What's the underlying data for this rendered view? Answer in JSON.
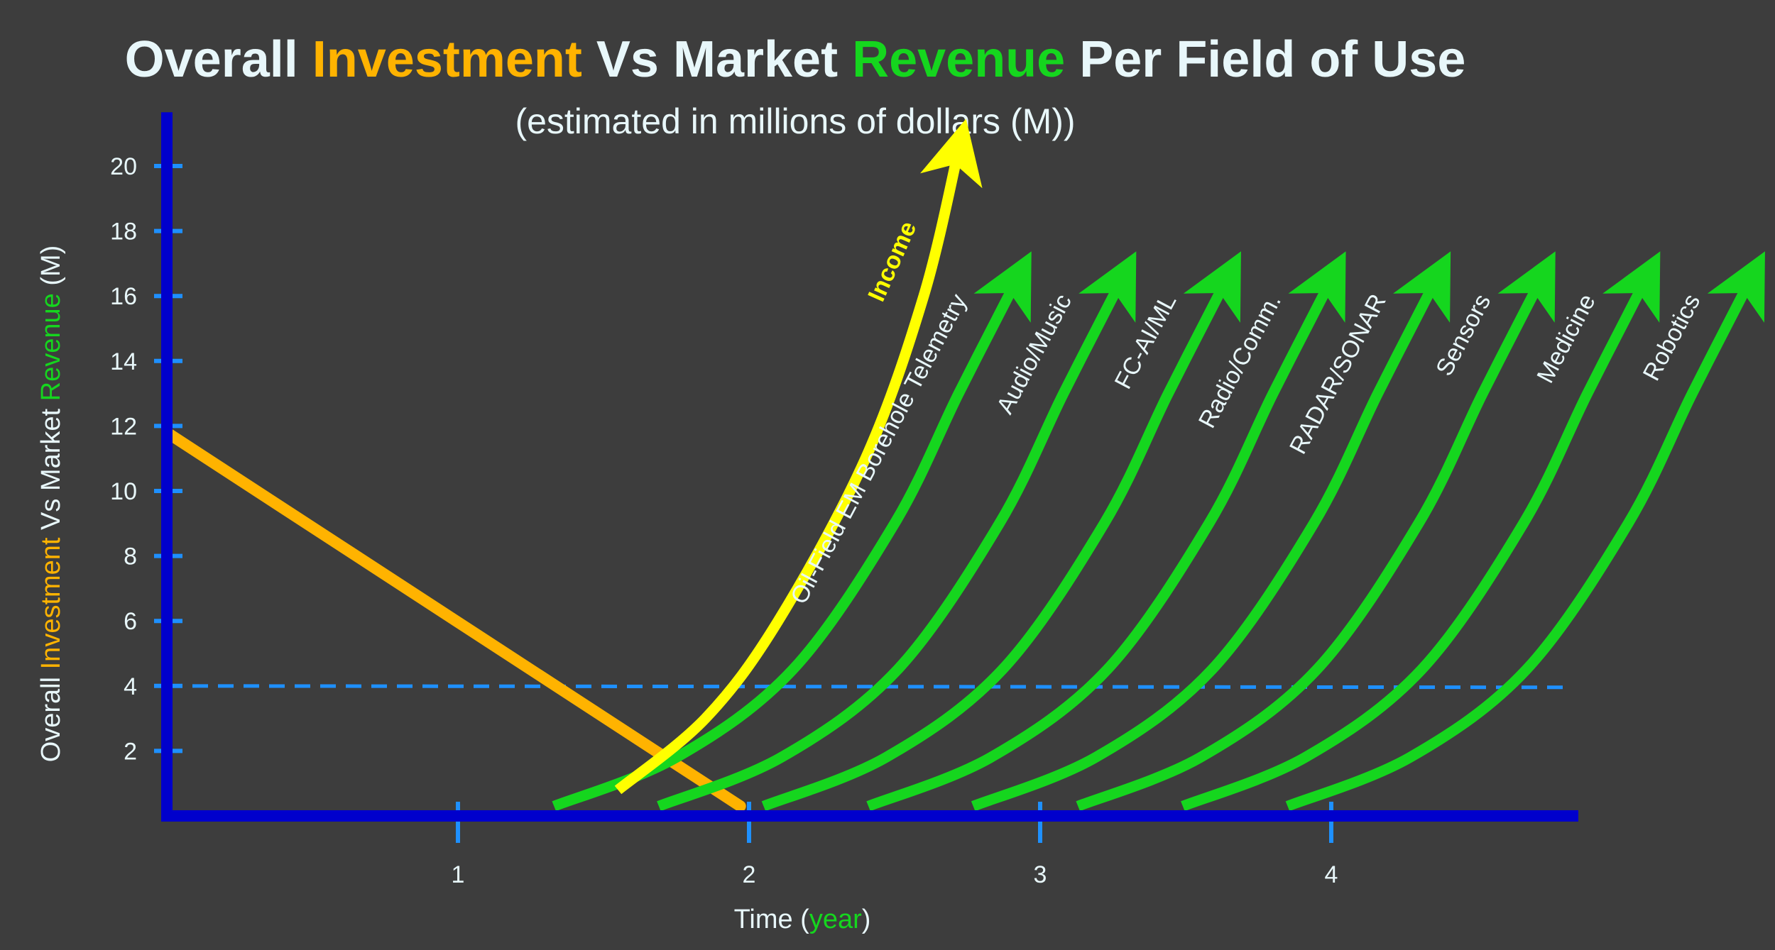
{
  "colors": {
    "background": "#3d3d3d",
    "axis": "#0000cc",
    "tick": "#1e90ff",
    "text": "#e8f7fa",
    "investment": "#ffb300",
    "revenue": "#15d61e",
    "income": "#ffff00",
    "threshold": "#1e90ff"
  },
  "chart_data": {
    "type": "line",
    "title": {
      "parts": [
        {
          "text": "Overall ",
          "color": "#e8f7fa"
        },
        {
          "text": "Investment",
          "color": "#ffb300"
        },
        {
          "text": " Vs Market ",
          "color": "#e8f7fa"
        },
        {
          "text": "Revenue",
          "color": "#15d61e"
        },
        {
          "text": " Per Field of Use",
          "color": "#e8f7fa"
        }
      ]
    },
    "subtitle": "(estimated in millions of dollars (M))",
    "xlabel": {
      "parts": [
        {
          "text": "Time (",
          "color": "#e8f7fa"
        },
        {
          "text": "year",
          "color": "#15d61e"
        },
        {
          "text": ")",
          "color": "#e8f7fa"
        }
      ]
    },
    "ylabel": {
      "parts": [
        {
          "text": "Overall ",
          "color": "#e8f7fa"
        },
        {
          "text": "Investment",
          "color": "#ffb300"
        },
        {
          "text": " Vs Market ",
          "color": "#e8f7fa"
        },
        {
          "text": "Revenue",
          "color": "#15d61e"
        },
        {
          "text": " (M)",
          "color": "#e8f7fa"
        }
      ]
    },
    "xlim": [
      0,
      4.8
    ],
    "ylim": [
      0,
      21
    ],
    "x_ticks": [
      1,
      2,
      3,
      4
    ],
    "y_ticks": [
      2,
      4,
      6,
      8,
      10,
      12,
      14,
      16,
      18,
      20
    ],
    "grid": false,
    "threshold": {
      "y": 4,
      "style": "dashed"
    },
    "investment": {
      "x": [
        0,
        1.97
      ],
      "y": [
        11.8,
        0.3
      ]
    },
    "income": {
      "label": "Income",
      "x": [
        1.55,
        1.85,
        2.1,
        2.4,
        2.6,
        2.72
      ],
      "y": [
        0.8,
        3,
        6,
        11,
        16,
        20.5
      ]
    },
    "series": [
      {
        "name": "Oil-Field EM Borehole Telemetry",
        "x": [
          1.33,
          1.75,
          2.15,
          2.5,
          2.72,
          2.92
        ],
        "y": [
          0.3,
          1.8,
          4.5,
          9,
          13,
          16.5
        ]
      },
      {
        "name": "Audio/Music",
        "x": [
          1.69,
          2.11,
          2.51,
          2.86,
          3.08,
          3.28
        ],
        "y": [
          0.3,
          1.8,
          4.5,
          9,
          13,
          16.5
        ]
      },
      {
        "name": "FC-AI/ML",
        "x": [
          2.05,
          2.47,
          2.87,
          3.22,
          3.44,
          3.64
        ],
        "y": [
          0.3,
          1.8,
          4.5,
          9,
          13,
          16.5
        ]
      },
      {
        "name": "Radio/Comm.",
        "x": [
          2.41,
          2.83,
          3.23,
          3.58,
          3.8,
          4.0
        ],
        "y": [
          0.3,
          1.8,
          4.5,
          9,
          13,
          16.5
        ]
      },
      {
        "name": "RADAR/SONAR",
        "x": [
          2.77,
          3.19,
          3.59,
          3.94,
          4.16,
          4.36
        ],
        "y": [
          0.3,
          1.8,
          4.5,
          9,
          13,
          16.5
        ]
      },
      {
        "name": "Sensors",
        "x": [
          3.13,
          3.55,
          3.95,
          4.3,
          4.52,
          4.72
        ],
        "y": [
          0.3,
          1.8,
          4.5,
          9,
          13,
          16.5
        ]
      },
      {
        "name": "Medicine",
        "x": [
          3.49,
          3.91,
          4.31,
          4.66,
          4.88,
          5.08
        ],
        "y": [
          0.3,
          1.8,
          4.5,
          9,
          13,
          16.5
        ]
      },
      {
        "name": "Robotics",
        "x": [
          3.85,
          4.27,
          4.67,
          5.02,
          5.24,
          5.44
        ],
        "y": [
          0.3,
          1.8,
          4.5,
          9,
          13,
          16.5
        ]
      }
    ]
  }
}
